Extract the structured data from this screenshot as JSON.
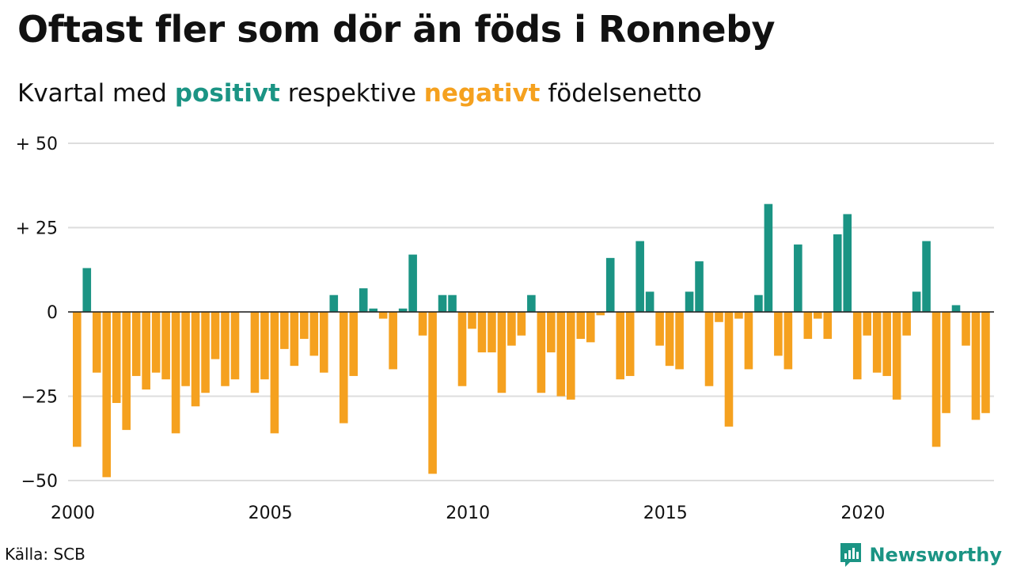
{
  "title": "Oftast fler som dör än föds i Ronneby",
  "subtitle": {
    "prefix": "Kvartal med",
    "positive": "positivt",
    "middle": "respektive",
    "negative": "negativt",
    "suffix": "födelsenetto"
  },
  "source": "Källa: SCB",
  "brand": "Newsworthy",
  "colors": {
    "positive": "#1b9484",
    "negative": "#f5a11f",
    "grid": "#dddddd",
    "text": "#111111"
  },
  "chart_data": {
    "type": "bar",
    "xlabel": "",
    "ylabel": "",
    "ylim": [
      -50,
      50
    ],
    "y_ticks": [
      {
        "value": 50,
        "label": "+ 50"
      },
      {
        "value": 25,
        "label": "+ 25"
      },
      {
        "value": 0,
        "label": "0"
      },
      {
        "value": -25,
        "label": "−25"
      },
      {
        "value": -50,
        "label": "−50"
      }
    ],
    "x_ticks": [
      "2000",
      "2005",
      "2010",
      "2015",
      "2020"
    ],
    "start": "2000 Q1",
    "values": [
      -40,
      13,
      -18,
      -49,
      -27,
      -35,
      -19,
      -23,
      -18,
      -20,
      -36,
      -22,
      -28,
      -24,
      -14,
      -22,
      -20,
      0,
      -24,
      -20,
      -36,
      -11,
      -16,
      -8,
      -13,
      -18,
      5,
      -33,
      -19,
      7,
      1,
      -2,
      -17,
      1,
      17,
      -7,
      -48,
      5,
      5,
      -22,
      -5,
      -12,
      -12,
      -24,
      -10,
      -7,
      5,
      -24,
      -12,
      -25,
      -26,
      -8,
      -9,
      -1,
      16,
      -20,
      -19,
      21,
      6,
      -10,
      -16,
      -17,
      6,
      15,
      -22,
      -3,
      -34,
      -2,
      -17,
      5,
      32,
      -13,
      -17,
      20,
      -8,
      -2,
      -8,
      23,
      29,
      -20,
      -7,
      -18,
      -19,
      -26,
      -7,
      6,
      21,
      -40,
      -30,
      2,
      -10,
      -32,
      -30
    ]
  }
}
